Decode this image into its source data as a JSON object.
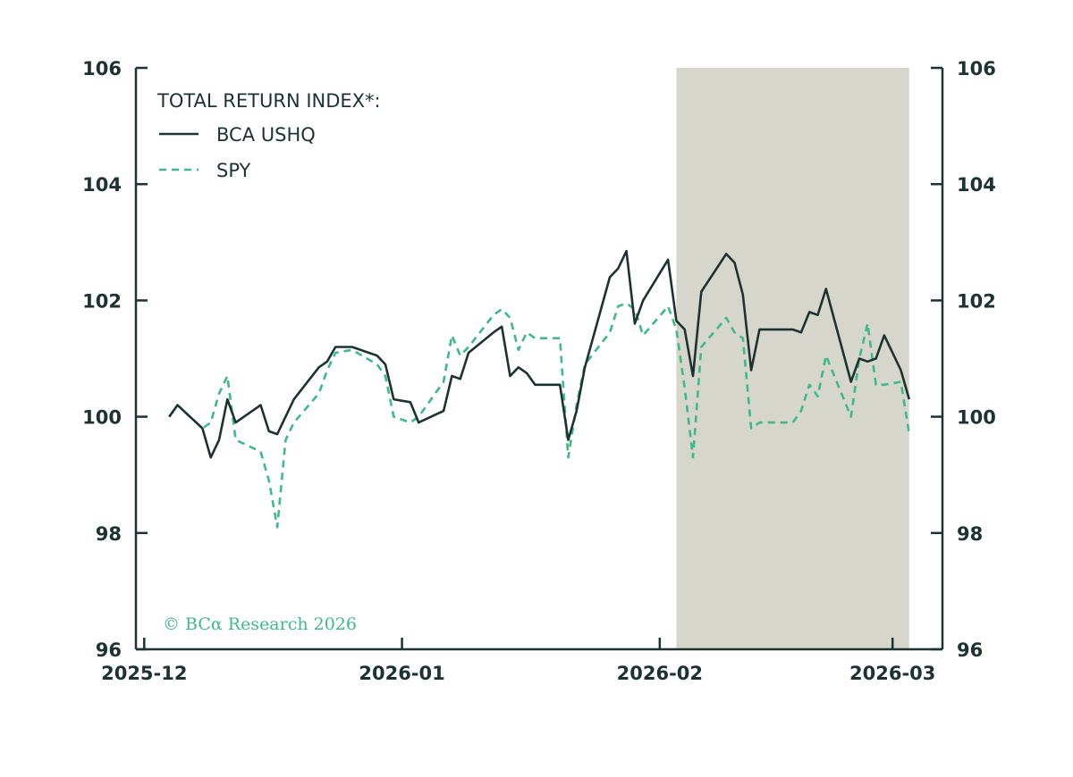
{
  "chart_data": {
    "type": "line",
    "title": "",
    "legend_title": "TOTAL RETURN INDEX*:",
    "credit": "© BCα Research 2026",
    "legend_position": "top-left",
    "grid": false,
    "colors": {
      "bca_ushq": "#1d3330",
      "spy": "#3fb88a",
      "shade": "#d6d6cc",
      "axis": "#1d3330"
    },
    "xlim": [
      "2025-11-30",
      "2026-03-07"
    ],
    "ylim": [
      96,
      106
    ],
    "y_ticks": [
      96,
      98,
      100,
      102,
      104,
      106
    ],
    "y_tick_labels": [
      "96",
      "98",
      "100",
      "102",
      "104",
      "106"
    ],
    "x_ticks": [
      "2025-12-01",
      "2026-01-01",
      "2026-02-01",
      "2026-03-01"
    ],
    "x_tick_labels": [
      "2025-12",
      "2026-01",
      "2026-02",
      "2026-03"
    ],
    "shaded_region": [
      "2026-02-03",
      "2026-03-03"
    ],
    "series": [
      {
        "name": "BCA USHQ",
        "style": "solid",
        "points": [
          [
            "2025-12-04",
            100.0
          ],
          [
            "2025-12-05",
            100.2
          ],
          [
            "2025-12-08",
            99.8
          ],
          [
            "2025-12-09",
            99.3
          ],
          [
            "2025-12-10",
            99.6
          ],
          [
            "2025-12-11",
            100.3
          ],
          [
            "2025-12-12",
            99.9
          ],
          [
            "2025-12-15",
            100.2
          ],
          [
            "2025-12-16",
            99.75
          ],
          [
            "2025-12-17",
            99.7
          ],
          [
            "2025-12-18",
            100.0
          ],
          [
            "2025-12-19",
            100.3
          ],
          [
            "2025-12-22",
            100.85
          ],
          [
            "2025-12-23",
            100.95
          ],
          [
            "2025-12-24",
            101.2
          ],
          [
            "2025-12-26",
            101.2
          ],
          [
            "2025-12-29",
            101.05
          ],
          [
            "2025-12-30",
            100.9
          ],
          [
            "2025-12-31",
            100.3
          ],
          [
            "2026-01-02",
            100.25
          ],
          [
            "2026-01-03",
            99.9
          ],
          [
            "2026-01-06",
            100.1
          ],
          [
            "2026-01-07",
            100.7
          ],
          [
            "2026-01-08",
            100.65
          ],
          [
            "2026-01-09",
            101.1
          ],
          [
            "2026-01-12",
            101.45
          ],
          [
            "2026-01-13",
            101.55
          ],
          [
            "2026-01-14",
            100.7
          ],
          [
            "2026-01-15",
            100.85
          ],
          [
            "2026-01-16",
            100.75
          ],
          [
            "2026-01-17",
            100.55
          ],
          [
            "2026-01-20",
            100.55
          ],
          [
            "2026-01-21",
            99.6
          ],
          [
            "2026-01-22",
            100.1
          ],
          [
            "2026-01-23",
            100.85
          ],
          [
            "2026-01-26",
            102.4
          ],
          [
            "2026-01-27",
            102.55
          ],
          [
            "2026-01-28",
            102.85
          ],
          [
            "2026-01-29",
            101.6
          ],
          [
            "2026-01-30",
            102.0
          ],
          [
            "2026-02-02",
            102.7
          ],
          [
            "2026-02-03",
            101.65
          ],
          [
            "2026-02-04",
            101.5
          ],
          [
            "2026-02-05",
            100.7
          ],
          [
            "2026-02-06",
            102.15
          ],
          [
            "2026-02-09",
            102.8
          ],
          [
            "2026-02-10",
            102.65
          ],
          [
            "2026-02-11",
            102.1
          ],
          [
            "2026-02-12",
            100.8
          ],
          [
            "2026-02-13",
            101.5
          ],
          [
            "2026-02-17",
            101.5
          ],
          [
            "2026-02-18",
            101.45
          ],
          [
            "2026-02-19",
            101.8
          ],
          [
            "2026-02-20",
            101.75
          ],
          [
            "2026-02-21",
            102.2
          ],
          [
            "2026-02-24",
            100.6
          ],
          [
            "2026-02-25",
            101.0
          ],
          [
            "2026-02-26",
            100.95
          ],
          [
            "2026-02-27",
            101.0
          ],
          [
            "2026-02-28",
            101.4
          ],
          [
            "2026-03-02",
            100.8
          ],
          [
            "2026-03-03",
            100.3
          ]
        ]
      },
      {
        "name": "SPY",
        "style": "dashed",
        "points": [
          [
            "2025-12-04",
            100.0
          ],
          [
            "2025-12-05",
            100.2
          ],
          [
            "2025-12-08",
            99.8
          ],
          [
            "2025-12-09",
            99.9
          ],
          [
            "2025-12-10",
            100.4
          ],
          [
            "2025-12-11",
            100.7
          ],
          [
            "2025-12-12",
            99.6
          ],
          [
            "2025-12-15",
            99.4
          ],
          [
            "2025-12-16",
            98.9
          ],
          [
            "2025-12-17",
            98.1
          ],
          [
            "2025-12-18",
            99.6
          ],
          [
            "2025-12-19",
            99.9
          ],
          [
            "2025-12-22",
            100.4
          ],
          [
            "2025-12-23",
            100.8
          ],
          [
            "2025-12-24",
            101.1
          ],
          [
            "2025-12-26",
            101.15
          ],
          [
            "2025-12-29",
            100.9
          ],
          [
            "2025-12-30",
            100.7
          ],
          [
            "2025-12-31",
            100.0
          ],
          [
            "2026-01-02",
            99.9
          ],
          [
            "2026-01-03",
            100.0
          ],
          [
            "2026-01-06",
            100.6
          ],
          [
            "2026-01-07",
            101.4
          ],
          [
            "2026-01-08",
            101.05
          ],
          [
            "2026-01-09",
            101.2
          ],
          [
            "2026-01-12",
            101.75
          ],
          [
            "2026-01-13",
            101.85
          ],
          [
            "2026-01-14",
            101.7
          ],
          [
            "2026-01-15",
            101.15
          ],
          [
            "2026-01-16",
            101.45
          ],
          [
            "2026-01-17",
            101.35
          ],
          [
            "2026-01-20",
            101.35
          ],
          [
            "2026-01-21",
            99.3
          ],
          [
            "2026-01-22",
            100.2
          ],
          [
            "2026-01-23",
            100.9
          ],
          [
            "2026-01-26",
            101.45
          ],
          [
            "2026-01-27",
            101.9
          ],
          [
            "2026-01-28",
            101.95
          ],
          [
            "2026-01-29",
            101.85
          ],
          [
            "2026-01-30",
            101.4
          ],
          [
            "2026-02-02",
            101.9
          ],
          [
            "2026-02-03",
            101.5
          ],
          [
            "2026-02-04",
            100.5
          ],
          [
            "2026-02-05",
            99.3
          ],
          [
            "2026-02-06",
            101.2
          ],
          [
            "2026-02-09",
            101.7
          ],
          [
            "2026-02-10",
            101.45
          ],
          [
            "2026-02-11",
            101.35
          ],
          [
            "2026-02-12",
            99.8
          ],
          [
            "2026-02-13",
            99.9
          ],
          [
            "2026-02-17",
            99.9
          ],
          [
            "2026-02-18",
            100.1
          ],
          [
            "2026-02-19",
            100.55
          ],
          [
            "2026-02-20",
            100.35
          ],
          [
            "2026-02-21",
            101.05
          ],
          [
            "2026-02-24",
            100.0
          ],
          [
            "2026-02-25",
            101.0
          ],
          [
            "2026-02-26",
            101.6
          ],
          [
            "2026-02-27",
            100.55
          ],
          [
            "2026-02-28",
            100.55
          ],
          [
            "2026-03-02",
            100.6
          ],
          [
            "2026-03-03",
            99.7
          ]
        ]
      }
    ]
  }
}
